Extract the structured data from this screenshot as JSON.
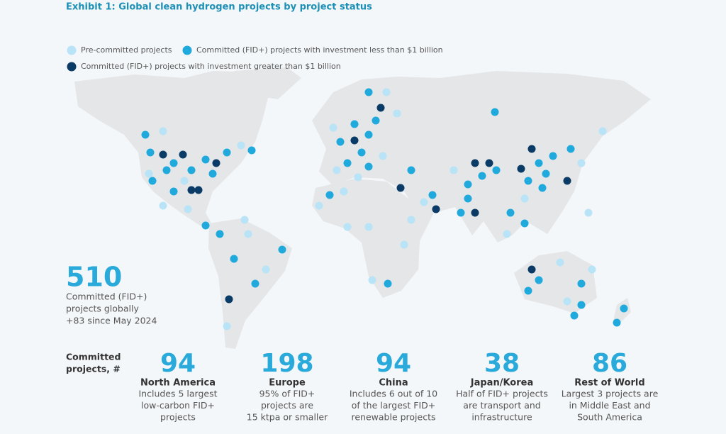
{
  "header": {
    "title": "Exhibit 1: Global clean hydrogen projects by project status"
  },
  "legend": [
    {
      "label": "Pre-committed projects",
      "color": "#b9e3f6"
    },
    {
      "label": "Committed (FID+) projects with investment less than $1 billion",
      "color": "#1fa9dc"
    },
    {
      "label": "Committed (FID+) projects with investment greater than $1 billion",
      "color": "#0a3a66"
    }
  ],
  "headline": {
    "value": 510,
    "lines": [
      "Committed (FID+)",
      "projects globally",
      "+83 since May 2024"
    ]
  },
  "regions_label": [
    "Committed",
    "projects, #"
  ],
  "regions": [
    {
      "value": 94,
      "name": "North America",
      "description": [
        "Includes 5 largest",
        "low-carbon FID+",
        "projects"
      ]
    },
    {
      "value": 198,
      "name": "Europe",
      "description": [
        "95% of FID+",
        "projects are",
        "15 ktpa or smaller"
      ]
    },
    {
      "value": 94,
      "name": "China",
      "description": [
        "Includes 6 out of 10",
        "of the largest FID+",
        "renewable projects"
      ]
    },
    {
      "value": 38,
      "name": "Japan/Korea",
      "description": [
        "Half of FID+ projects",
        "are transport and",
        "infrastructure"
      ]
    },
    {
      "value": 86,
      "name": "Rest of World",
      "description": [
        "Largest 3 projects are",
        "in Middle East and",
        "South America"
      ]
    }
  ]
}
